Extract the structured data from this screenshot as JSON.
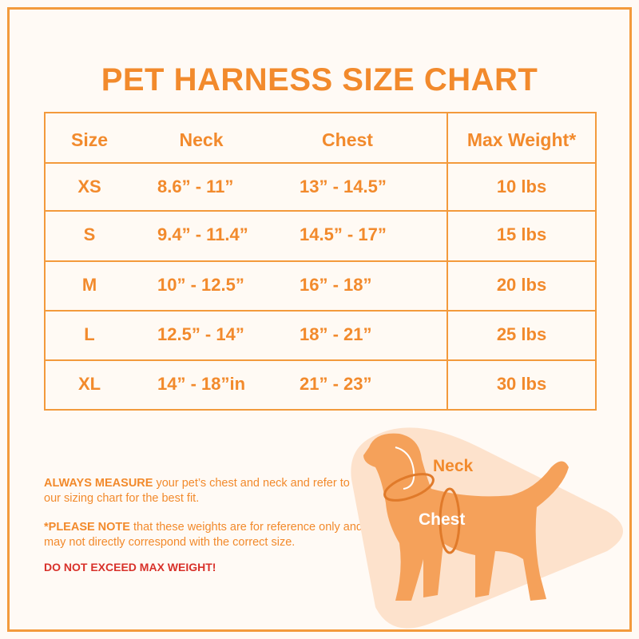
{
  "title": "PET HARNESS SIZE CHART",
  "table": {
    "headers": [
      "Size",
      "Neck",
      "Chest",
      "Max Weight*"
    ],
    "rows": [
      [
        "XS",
        "8.6” - 11”",
        "13” - 14.5”",
        "10 lbs"
      ],
      [
        "S",
        "9.4” - 11.4”",
        "14.5” - 17”",
        "15 lbs"
      ],
      [
        "M",
        "10” - 12.5”",
        "16” - 18”",
        "20 lbs"
      ],
      [
        "L",
        "12.5” - 14”",
        "18” - 21”",
        "25 lbs"
      ],
      [
        "XL",
        "14” - 18”in",
        "21” - 23”",
        "30 lbs"
      ]
    ]
  },
  "notes": [
    {
      "bold": "ALWAYS MEASURE",
      "text": " your pet’s chest and neck and refer to our sizing chart for the best fit."
    },
    {
      "bold": "*PLEASE NOTE",
      "text": " that these weights are for reference only and may not directly correspond with the correct size."
    }
  ],
  "warning": "DO NOT EXCEED MAX WEIGHT!",
  "illustration": {
    "neck": "Neck",
    "chest": "Chest"
  }
}
